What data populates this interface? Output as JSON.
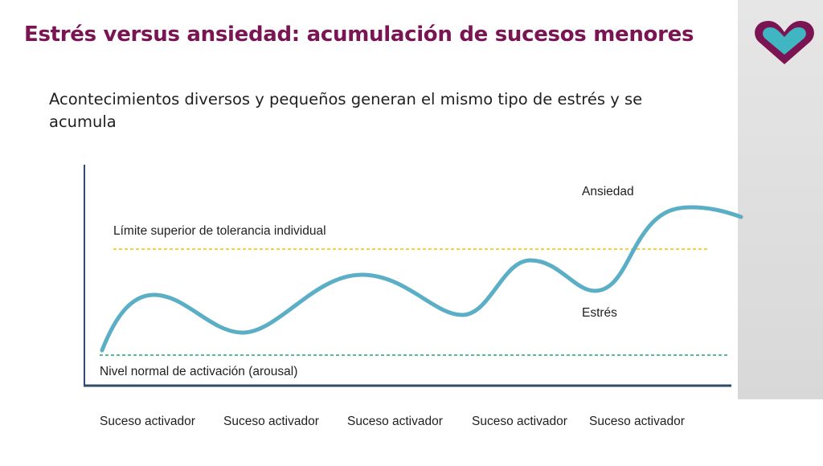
{
  "slide": {
    "title": "Estrés versus ansiedad: acumulación de sucesos menores",
    "subtitle": "Acontecimientos diversos y pequeños generan el mismo tipo de estrés y  se acumula"
  },
  "diagram": {
    "upper_limit_label": "Límite superior de tolerancia individual",
    "normal_level_label": "Nivel normal de activación (arousal)",
    "anxiety_label": "Ansiedad",
    "stress_label": "Estrés",
    "events": [
      "Suceso activador",
      "Suceso activador",
      "Suceso activador",
      "Suceso activador",
      "Suceso activador"
    ]
  },
  "colors": {
    "title": "#7a1452",
    "curve": "#5aaec6",
    "upper_limit_line": "#f2c200",
    "normal_level_line": "#1faa6a",
    "axis": "#2f4a6e",
    "logo_outline": "#7a1452",
    "logo_fill": "#3fb6c2"
  },
  "icons": {
    "logo": "heart-logo-icon"
  }
}
